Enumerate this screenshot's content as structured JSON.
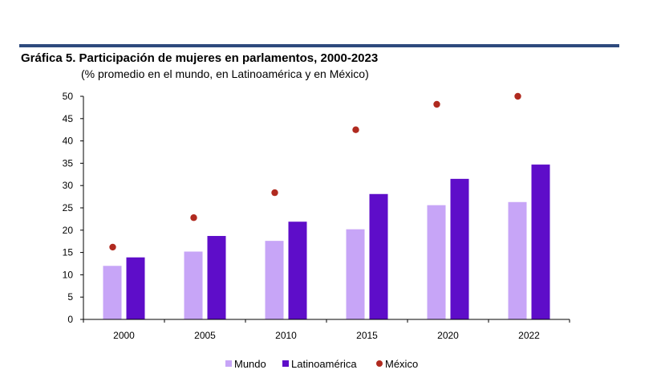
{
  "header": {
    "title": "Gráfica 5.  Participación de mujeres en parlamentos, 2000-2023",
    "subtitle": "(% promedio en el mundo, en Latinoamérica y en México)"
  },
  "chart_data": {
    "type": "bar",
    "title": "Gráfica 5.  Participación de mujeres en parlamentos, 2000-2023",
    "subtitle": "(% promedio en el mundo, en Latinoamérica y en México)",
    "categories": [
      "2000",
      "2005",
      "2010",
      "2015",
      "2020",
      "2022"
    ],
    "ylim": [
      0,
      50
    ],
    "yticks": [
      0,
      5,
      10,
      15,
      20,
      25,
      30,
      35,
      40,
      45,
      50
    ],
    "grid": false,
    "legend_position": "bottom",
    "series": [
      {
        "name": "Mundo",
        "kind": "bar",
        "color": "#c7a5f7",
        "values": [
          12.0,
          15.2,
          17.6,
          20.2,
          25.6,
          26.3
        ]
      },
      {
        "name": "Latinoamérica",
        "kind": "bar",
        "color": "#5e0dc9",
        "values": [
          13.9,
          18.7,
          21.9,
          28.1,
          31.5,
          34.7
        ]
      },
      {
        "name": "México",
        "kind": "scatter",
        "color": "#b02a1f",
        "values": [
          16.2,
          22.8,
          28.4,
          42.5,
          48.2,
          50.0
        ]
      }
    ]
  }
}
